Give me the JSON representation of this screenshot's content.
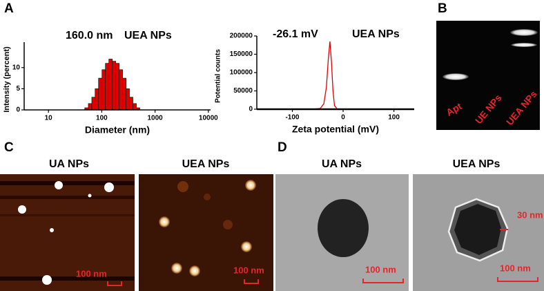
{
  "chart_data": [
    {
      "type": "histogram",
      "annotations": [
        "160.0 nm",
        "UEA NPs"
      ],
      "xlabel": "Diameter (nm)",
      "ylabel": "Intensity (percent)",
      "bins": [
        48,
        56,
        65,
        75,
        87,
        101,
        117,
        136,
        158,
        183,
        212,
        246,
        286,
        331,
        384,
        446,
        517
      ],
      "values": [
        0.5,
        1.5,
        3,
        5,
        7.5,
        9.5,
        11,
        12,
        11.5,
        11,
        9.5,
        7.5,
        5,
        3,
        1.5,
        0.5
      ],
      "color": "#e00000",
      "xlog": true,
      "xlim": [
        3.5,
        11000
      ],
      "xticks": [
        10,
        100,
        1000,
        10000
      ],
      "ylim": [
        0,
        16
      ],
      "yticks": [
        0,
        5,
        10
      ]
    },
    {
      "type": "line",
      "annotations": [
        "-26.1 mV",
        "UEA NPs"
      ],
      "xlabel": "Zeta potential (mV)",
      "ylabel": "Potential counts",
      "x": [
        -170,
        -60,
        -45,
        -38,
        -33,
        -29,
        -26,
        -23,
        -20,
        -17,
        -12,
        0,
        140
      ],
      "values": [
        0,
        0,
        2000,
        15000,
        60000,
        140000,
        185000,
        130000,
        50000,
        10000,
        1000,
        0,
        0
      ],
      "color": "#e00000",
      "xlim": [
        -170,
        140
      ],
      "xticks": [
        -100,
        0,
        100
      ],
      "ylim": [
        0,
        200000
      ],
      "yticks": [
        0,
        50000,
        100000,
        150000,
        200000
      ]
    }
  ],
  "panel_labels": [
    "A",
    "B",
    "C",
    "D"
  ],
  "gel": {
    "lanes": [
      "Apt",
      "UE NPs",
      "UEA NPs"
    ]
  },
  "afm": {
    "titles": [
      "UA NPs",
      "UEA NPs"
    ],
    "scale_bars": [
      "100 nm",
      "100 nm"
    ]
  },
  "tem": {
    "titles": [
      "UA NPs",
      "UEA NPs"
    ],
    "scale_bars": [
      "100 nm",
      "100 nm"
    ],
    "shell": "30 nm"
  }
}
